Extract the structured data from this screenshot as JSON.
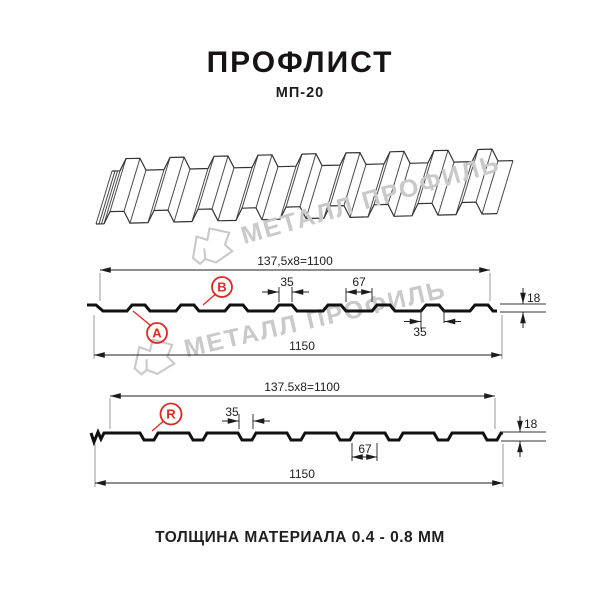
{
  "page_title": "ПРОФЛИСТ",
  "subtitle": "МП-20",
  "footer_note": "ТОЛЩИНА МАТЕРИАЛА 0.4 - 0.8 ММ",
  "watermark": {
    "brand_text": "МЕТАЛЛ ПРОФИЛЬ"
  },
  "colors": {
    "accent_red": "#e02822",
    "line_dark": "#1c1c1c",
    "watermark_gray": "#c9c9c9"
  },
  "section_top": {
    "coverage_width": "137,5x8=1100",
    "overall_width": "1150",
    "rib_top_width": "35",
    "flat_width": "67",
    "profile_height": "18",
    "rib_base_width": "35",
    "side_label_a": "A",
    "side_label_b": "B"
  },
  "section_bottom": {
    "coverage_width": "137.5x8=1100",
    "overall_width": "1150",
    "valley_width": "35",
    "flat_width": "67",
    "profile_height": "18",
    "side_label_r": "R"
  }
}
